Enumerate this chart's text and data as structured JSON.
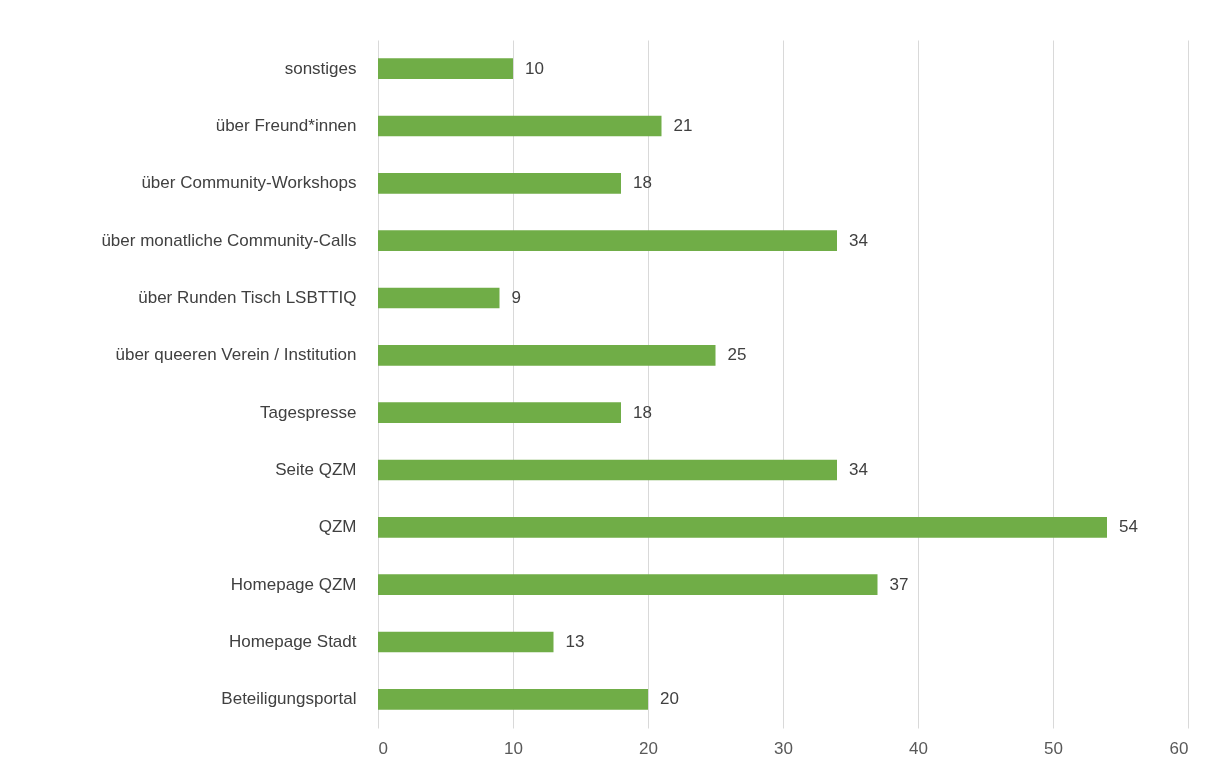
{
  "chart_data": {
    "type": "bar",
    "orientation": "horizontal",
    "categories": [
      "sonstiges",
      "über Freund*innen",
      "über Community-Workshops",
      "über monatliche Community-Calls",
      "über Runden Tisch LSBTTIQ",
      "über queeren Verein / Institution",
      "Tagespresse",
      "Seite QZM",
      "QZM",
      "Homepage QZM",
      "Homepage Stadt",
      "Beteiligungsportal"
    ],
    "values": [
      10,
      21,
      18,
      34,
      9,
      25,
      18,
      34,
      54,
      37,
      13,
      20
    ],
    "color": "#70ad47",
    "xlim": [
      0,
      60
    ],
    "xticks": [
      0,
      10,
      20,
      30,
      40,
      50,
      60
    ],
    "grid": "x",
    "data_labels": true
  }
}
